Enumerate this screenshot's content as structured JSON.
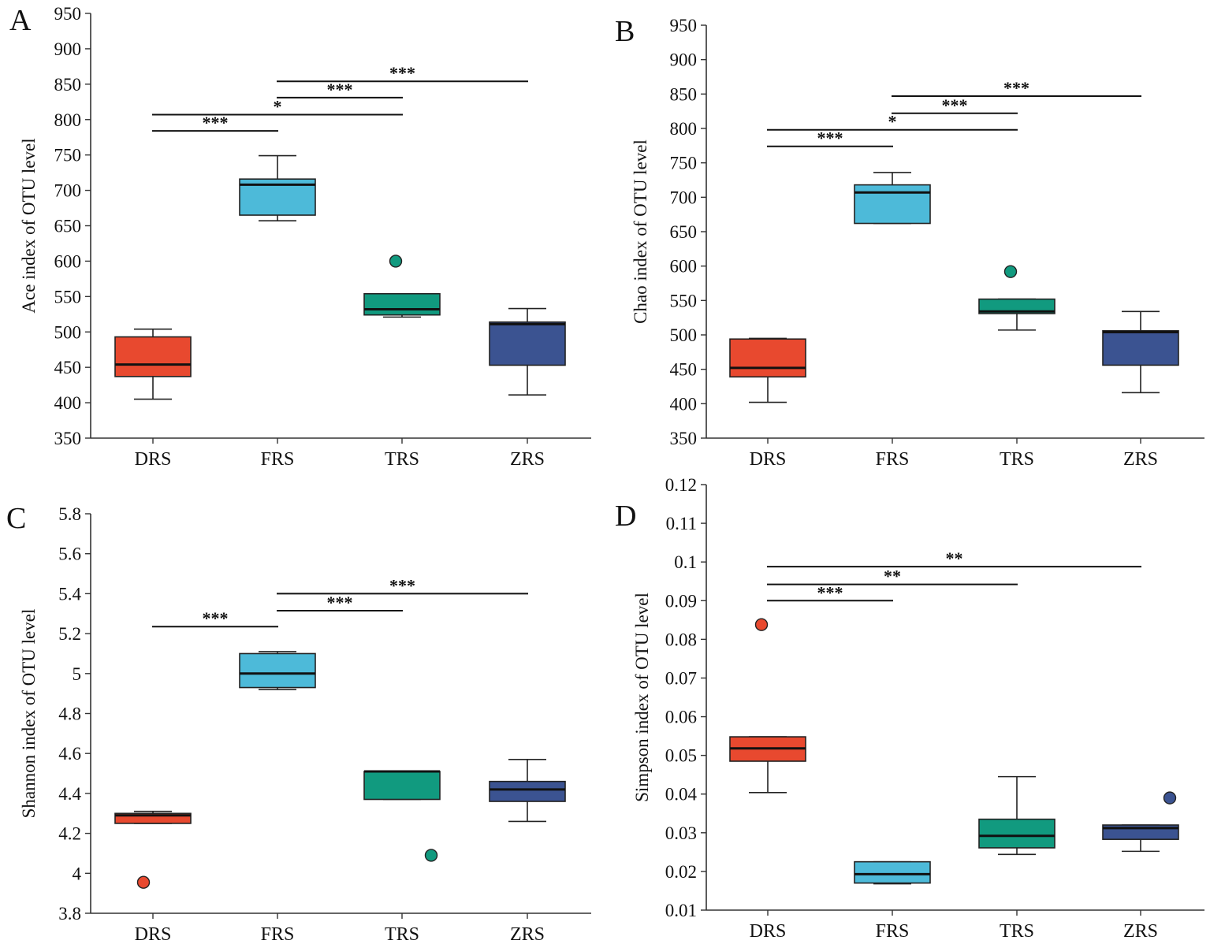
{
  "chart_data": [
    {
      "type": "box",
      "panel_label": "A",
      "ylabel": "Ace index of OTU level",
      "categories": [
        "DRS",
        "FRS",
        "TRS",
        "ZRS"
      ],
      "ylim": [
        350,
        950
      ],
      "yticks": [
        350,
        400,
        450,
        500,
        550,
        600,
        650,
        700,
        750,
        800,
        850,
        900,
        950
      ],
      "ytick_labels": [
        "350",
        "400",
        "450",
        "500",
        "550",
        "600",
        "650",
        "700",
        "750",
        "800",
        "850",
        "900",
        "950"
      ],
      "colors": [
        "#e8492f",
        "#4dbad9",
        "#119a7f",
        "#3b5391"
      ],
      "boxes": [
        {
          "min": 405,
          "q1": 437,
          "median": 454,
          "q3": 493,
          "max": 504,
          "outliers": []
        },
        {
          "min": 657,
          "q1": 665,
          "median": 708,
          "q3": 716,
          "max": 749,
          "outliers": []
        },
        {
          "min": 521,
          "q1": 524,
          "median": 532,
          "q3": 554,
          "max": 554,
          "outliers": [
            600
          ]
        },
        {
          "min": 411,
          "q1": 453,
          "median": 511,
          "q3": 514,
          "max": 533,
          "outliers": []
        }
      ],
      "significance": [
        {
          "from": 0,
          "to": 1,
          "y": 784,
          "label": "***"
        },
        {
          "from": 0,
          "to": 2,
          "y": 807,
          "label": "*"
        },
        {
          "from": 1,
          "to": 2,
          "y": 831,
          "label": "***"
        },
        {
          "from": 1,
          "to": 3,
          "y": 854,
          "label": "***"
        }
      ]
    },
    {
      "type": "box",
      "panel_label": "B",
      "ylabel": "Chao index of OTU level",
      "categories": [
        "DRS",
        "FRS",
        "TRS",
        "ZRS"
      ],
      "ylim": [
        350,
        950
      ],
      "yticks": [
        350,
        400,
        450,
        500,
        550,
        600,
        650,
        700,
        750,
        800,
        850,
        900,
        950
      ],
      "ytick_labels": [
        "350",
        "400",
        "450",
        "500",
        "550",
        "600",
        "650",
        "700",
        "750",
        "800",
        "850",
        "900",
        "950"
      ],
      "colors": [
        "#e8492f",
        "#4dbad9",
        "#119a7f",
        "#3b5391"
      ],
      "boxes": [
        {
          "min": 402,
          "q1": 439,
          "median": 452,
          "q3": 494,
          "max": 495,
          "outliers": []
        },
        {
          "min": 662,
          "q1": 662,
          "median": 707,
          "q3": 718,
          "max": 736,
          "outliers": []
        },
        {
          "min": 507,
          "q1": 531,
          "median": 534,
          "q3": 552,
          "max": 552,
          "outliers": [
            592
          ]
        },
        {
          "min": 416,
          "q1": 456,
          "median": 504,
          "q3": 506,
          "max": 534,
          "outliers": []
        }
      ],
      "significance": [
        {
          "from": 0,
          "to": 1,
          "y": 774,
          "label": "***"
        },
        {
          "from": 0,
          "to": 2,
          "y": 798,
          "label": "*"
        },
        {
          "from": 1,
          "to": 2,
          "y": 822,
          "label": "***"
        },
        {
          "from": 1,
          "to": 3,
          "y": 847,
          "label": "***"
        }
      ]
    },
    {
      "type": "box",
      "panel_label": "C",
      "ylabel": "Shannon index of OTU level",
      "categories": [
        "DRS",
        "FRS",
        "TRS",
        "ZRS"
      ],
      "ylim": [
        3.8,
        5.8
      ],
      "yticks": [
        3.8,
        4.0,
        4.2,
        4.4,
        4.6,
        4.8,
        5.0,
        5.2,
        5.4,
        5.6,
        5.8
      ],
      "ytick_labels": [
        "3.8",
        "4",
        "4.2",
        "4.4",
        "4.6",
        "4.8",
        "5",
        "5.2",
        "5.4",
        "5.6",
        "5.8"
      ],
      "colors": [
        "#e8492f",
        "#4dbad9",
        "#119a7f",
        "#3b5391"
      ],
      "boxes": [
        {
          "min": 4.25,
          "q1": 4.25,
          "median": 4.29,
          "q3": 4.3,
          "max": 4.31,
          "outliers": [
            3.955
          ]
        },
        {
          "min": 4.92,
          "q1": 4.93,
          "median": 5.0,
          "q3": 5.1,
          "max": 5.11,
          "outliers": []
        },
        {
          "min": 4.37,
          "q1": 4.37,
          "median": 4.51,
          "q3": 4.51,
          "max": 4.51,
          "outliers": [
            4.09
          ]
        },
        {
          "min": 4.26,
          "q1": 4.36,
          "median": 4.42,
          "q3": 4.46,
          "max": 4.57,
          "outliers": []
        }
      ],
      "significance": [
        {
          "from": 0,
          "to": 1,
          "y": 5.235,
          "label": "***"
        },
        {
          "from": 1,
          "to": 2,
          "y": 5.315,
          "label": "***"
        },
        {
          "from": 1,
          "to": 3,
          "y": 5.4,
          "label": "***"
        }
      ]
    },
    {
      "type": "box",
      "panel_label": "D",
      "ylabel": "Simpson index of OTU level",
      "categories": [
        "DRS",
        "FRS",
        "TRS",
        "ZRS"
      ],
      "ylim": [
        0.01,
        0.12
      ],
      "yticks": [
        0.01,
        0.02,
        0.03,
        0.04,
        0.05,
        0.06,
        0.07,
        0.08,
        0.09,
        0.1,
        0.11,
        0.12
      ],
      "ytick_labels": [
        "0.01",
        "0.02",
        "0.03",
        "0.04",
        "0.05",
        "0.06",
        "0.07",
        "0.08",
        "0.09",
        "0.1",
        "0.11",
        "0.12"
      ],
      "colors": [
        "#e8492f",
        "#4dbad9",
        "#119a7f",
        "#3b5391"
      ],
      "boxes": [
        {
          "min": 0.0404,
          "q1": 0.0485,
          "median": 0.0518,
          "q3": 0.0548,
          "max": 0.0548,
          "outliers": [
            0.0838
          ]
        },
        {
          "min": 0.0168,
          "q1": 0.017,
          "median": 0.0193,
          "q3": 0.0225,
          "max": 0.0225,
          "outliers": []
        },
        {
          "min": 0.0244,
          "q1": 0.0261,
          "median": 0.0292,
          "q3": 0.0335,
          "max": 0.0445,
          "outliers": []
        },
        {
          "min": 0.0252,
          "q1": 0.0283,
          "median": 0.0312,
          "q3": 0.032,
          "max": 0.032,
          "outliers": [
            0.039
          ]
        }
      ],
      "significance": [
        {
          "from": 0,
          "to": 1,
          "y": 0.09,
          "label": "***"
        },
        {
          "from": 0,
          "to": 2,
          "y": 0.0942,
          "label": "**"
        },
        {
          "from": 0,
          "to": 3,
          "y": 0.0988,
          "label": "**"
        }
      ]
    }
  ]
}
